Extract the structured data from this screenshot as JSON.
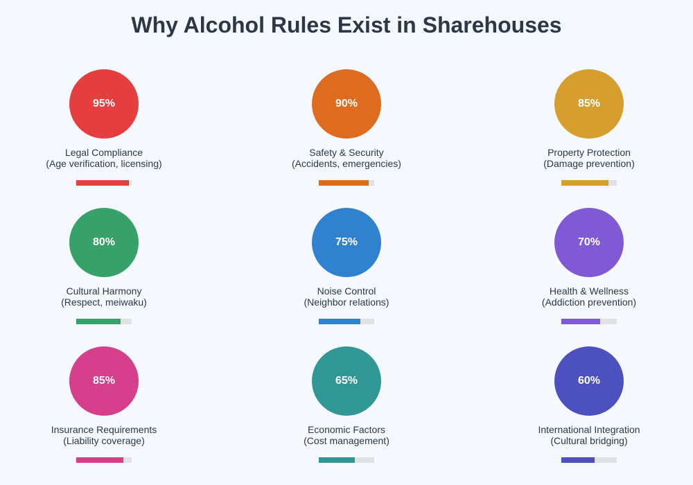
{
  "title": "Why Alcohol Rules Exist in Sharehouses",
  "items": [
    {
      "value": 95,
      "value_label": "95%",
      "name": "Legal Compliance",
      "detail": "(Age verification, licensing)",
      "color": "#e53e3e"
    },
    {
      "value": 90,
      "value_label": "90%",
      "name": "Safety & Security",
      "detail": "(Accidents, emergencies)",
      "color": "#dd6b20"
    },
    {
      "value": 85,
      "value_label": "85%",
      "name": "Property Protection",
      "detail": "(Damage prevention)",
      "color": "#d69e2e"
    },
    {
      "value": 80,
      "value_label": "80%",
      "name": "Cultural Harmony",
      "detail": "(Respect, meiwaku)",
      "color": "#38a169"
    },
    {
      "value": 75,
      "value_label": "75%",
      "name": "Noise Control",
      "detail": "(Neighbor relations)",
      "color": "#3182ce"
    },
    {
      "value": 70,
      "value_label": "70%",
      "name": "Health & Wellness",
      "detail": "(Addiction prevention)",
      "color": "#805ad5"
    },
    {
      "value": 85,
      "value_label": "85%",
      "name": "Insurance Requirements",
      "detail": "(Liability coverage)",
      "color": "#d53f8c"
    },
    {
      "value": 65,
      "value_label": "65%",
      "name": "Economic Factors",
      "detail": "(Cost management)",
      "color": "#319795"
    },
    {
      "value": 60,
      "value_label": "60%",
      "name": "International Integration",
      "detail": "(Cultural bridging)",
      "color": "#4c51bf"
    }
  ],
  "colors": {
    "background": "#f5f8fc",
    "title": "#2d3748",
    "label": "#2d3748",
    "track": "#e2e2e4"
  },
  "chart_data": {
    "type": "bar",
    "title": "Why Alcohol Rules Exist in Sharehouses",
    "categories": [
      "Legal Compliance (Age verification, licensing)",
      "Safety & Security (Accidents, emergencies)",
      "Property Protection (Damage prevention)",
      "Cultural Harmony (Respect, meiwaku)",
      "Noise Control (Neighbor relations)",
      "Health & Wellness (Addiction prevention)",
      "Insurance Requirements (Liability coverage)",
      "Economic Factors (Cost management)",
      "International Integration (Cultural bridging)"
    ],
    "values": [
      95,
      90,
      85,
      80,
      75,
      70,
      85,
      65,
      60
    ],
    "unit": "%",
    "xlabel": "",
    "ylabel": "",
    "ylim": [
      0,
      100
    ],
    "layout": "3x3 grid of circle badges with progress bars",
    "grid": false,
    "legend": "none"
  }
}
